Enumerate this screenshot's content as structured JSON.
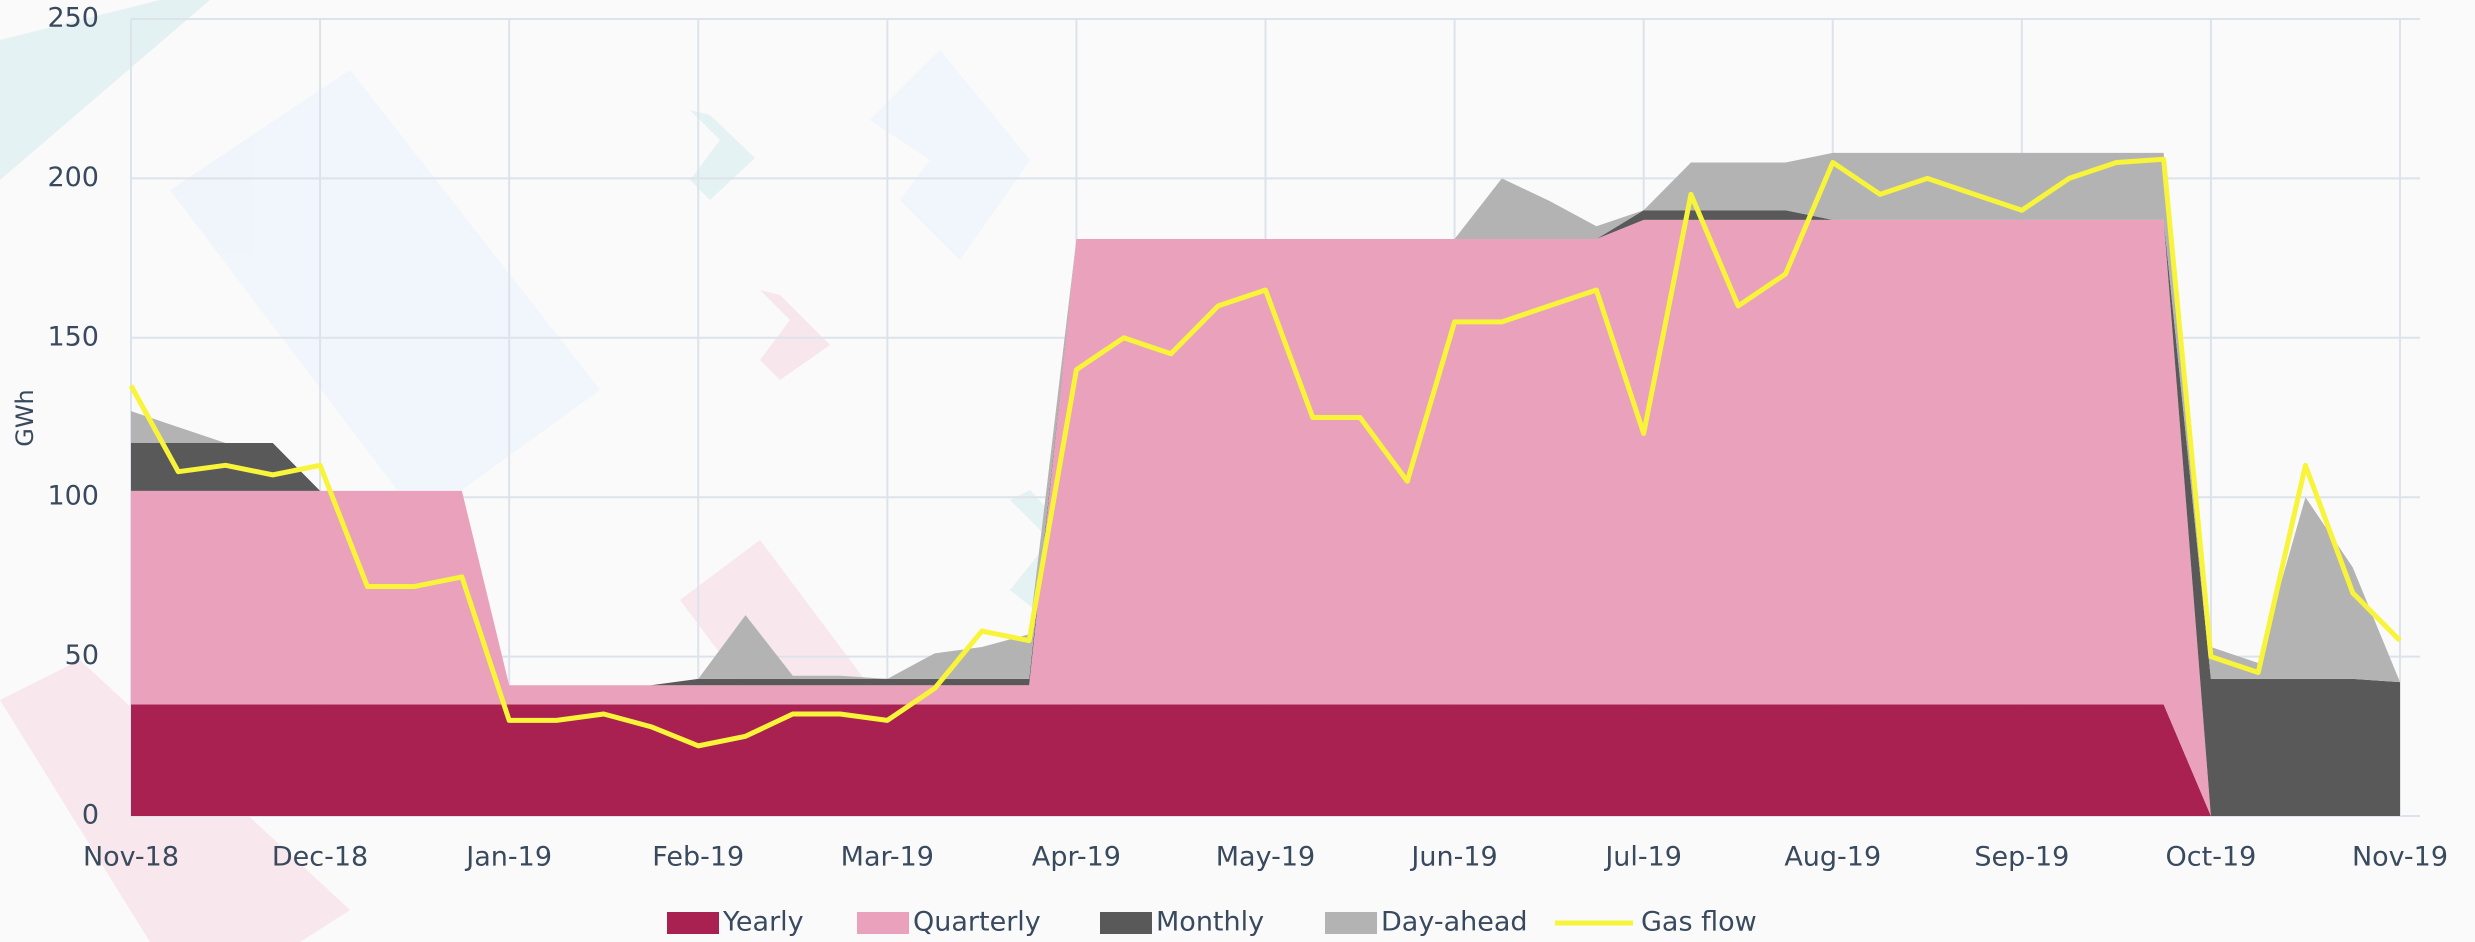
{
  "chart_data": {
    "type": "area",
    "stacked": true,
    "grid": true,
    "legend": "bottom",
    "ylabel": "GWh",
    "categories": [
      "Nov-18",
      null,
      null,
      null,
      "Dec-18",
      null,
      null,
      null,
      "Jan-19",
      null,
      null,
      null,
      "Feb-19",
      null,
      null,
      null,
      "Mar-19",
      null,
      null,
      null,
      "Apr-19",
      null,
      null,
      null,
      "May-19",
      null,
      null,
      null,
      "Jun-19",
      null,
      null,
      null,
      "Jul-19",
      null,
      null,
      null,
      "Aug-19",
      null,
      null,
      null,
      "Sep-19",
      null,
      null,
      null,
      "Oct-19",
      null,
      null,
      null,
      "Nov-19"
    ],
    "ylim": [
      0,
      250
    ],
    "yticks": [
      0,
      50,
      100,
      150,
      200,
      250
    ],
    "series": [
      {
        "name": "Yearly",
        "type": "area",
        "color": "#a82150",
        "values": [
          35,
          35,
          35,
          35,
          35,
          35,
          35,
          35,
          35,
          35,
          35,
          35,
          35,
          35,
          35,
          35,
          35,
          35,
          35,
          35,
          35,
          35,
          35,
          35,
          35,
          35,
          35,
          35,
          35,
          35,
          35,
          35,
          35,
          35,
          35,
          35,
          35,
          35,
          35,
          35,
          35,
          35,
          35,
          35,
          0,
          0,
          0,
          0,
          0
        ]
      },
      {
        "name": "Quarterly",
        "type": "area",
        "color": "#eaa1bb",
        "values": [
          67,
          67,
          67,
          67,
          67,
          67,
          67,
          67,
          6,
          6,
          6,
          6,
          6,
          6,
          6,
          6,
          6,
          6,
          6,
          6,
          146,
          146,
          146,
          146,
          146,
          146,
          146,
          146,
          146,
          146,
          146,
          146,
          152,
          152,
          152,
          152,
          152,
          152,
          152,
          152,
          152,
          152,
          152,
          152,
          0,
          0,
          0,
          0,
          0
        ]
      },
      {
        "name": "Monthly",
        "type": "area",
        "color": "#595959",
        "values": [
          15,
          15,
          15,
          15,
          0,
          0,
          0,
          0,
          0,
          0,
          0,
          0,
          2,
          2,
          2,
          2,
          2,
          2,
          2,
          2,
          0,
          0,
          0,
          0,
          0,
          0,
          0,
          0,
          0,
          0,
          0,
          0,
          3,
          3,
          3,
          3,
          0,
          0,
          0,
          0,
          0,
          0,
          0,
          0,
          43,
          43,
          43,
          43,
          42
        ]
      },
      {
        "name": "Day-ahead",
        "type": "area",
        "color": "#b3b3b3",
        "values": [
          10,
          5,
          0,
          0,
          0,
          0,
          0,
          0,
          0,
          0,
          0,
          0,
          0,
          20,
          1,
          1,
          0,
          8,
          10,
          14,
          0,
          0,
          0,
          0,
          0,
          0,
          0,
          0,
          0,
          19,
          12,
          4,
          0,
          15,
          15,
          15,
          21,
          21,
          21,
          21,
          21,
          21,
          21,
          21,
          10,
          5,
          57,
          35,
          0
        ]
      },
      {
        "name": "Gas flow",
        "type": "line",
        "color": "#f7f43a",
        "values": [
          135,
          108,
          110,
          107,
          110,
          72,
          72,
          75,
          30,
          30,
          32,
          28,
          22,
          25,
          32,
          32,
          30,
          40,
          58,
          55,
          140,
          150,
          145,
          160,
          165,
          125,
          125,
          105,
          155,
          155,
          160,
          165,
          120,
          195,
          160,
          170,
          205,
          195,
          200,
          195,
          190,
          200,
          205,
          206,
          50,
          45,
          110,
          70,
          55
        ]
      }
    ]
  }
}
